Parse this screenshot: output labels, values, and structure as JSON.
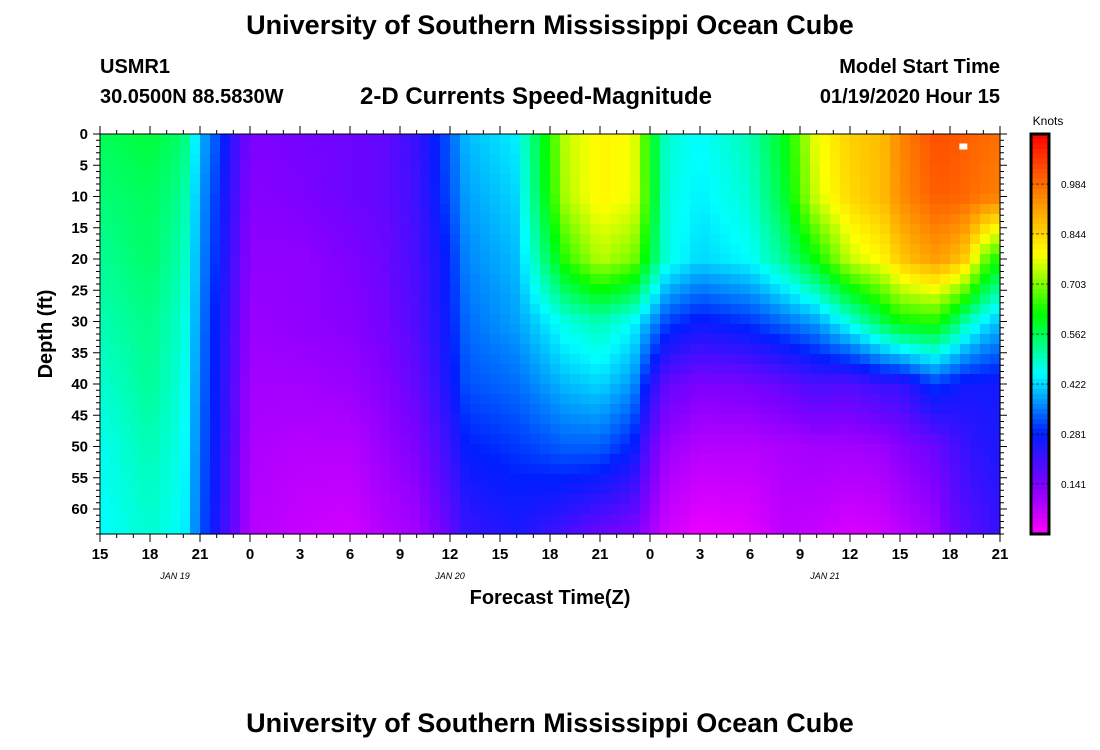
{
  "header": {
    "title": "University of Southern Mississippi Ocean Cube",
    "station": "USMR1",
    "coords": "30.0500N 88.5830W",
    "subtitle": "2-D Currents Speed-Magnitude",
    "model_label": "Model Start Time",
    "model_time": "01/19/2020 Hour 15"
  },
  "footer": {
    "title": "University of Southern Mississippi Ocean Cube"
  },
  "chart_data": {
    "type": "heatmap",
    "title": "2-D Currents Speed-Magnitude",
    "xlabel": "Forecast Time(Z)",
    "ylabel": "Depth (ft)",
    "x_unit": "forecast hours from 01/19 15Z",
    "xlim": [
      0,
      54
    ],
    "ylim": [
      64,
      0
    ],
    "x_ticks": [
      {
        "h": 0,
        "label": "15"
      },
      {
        "h": 3,
        "label": "18"
      },
      {
        "h": 6,
        "label": "21"
      },
      {
        "h": 9,
        "label": "0"
      },
      {
        "h": 12,
        "label": "3"
      },
      {
        "h": 15,
        "label": "6"
      },
      {
        "h": 18,
        "label": "9"
      },
      {
        "h": 21,
        "label": "12"
      },
      {
        "h": 24,
        "label": "15"
      },
      {
        "h": 27,
        "label": "18"
      },
      {
        "h": 30,
        "label": "21"
      },
      {
        "h": 33,
        "label": "0"
      },
      {
        "h": 36,
        "label": "3"
      },
      {
        "h": 39,
        "label": "6"
      },
      {
        "h": 42,
        "label": "9"
      },
      {
        "h": 45,
        "label": "12"
      },
      {
        "h": 48,
        "label": "15"
      },
      {
        "h": 51,
        "label": "18"
      },
      {
        "h": 54,
        "label": "21"
      }
    ],
    "date_labels": [
      {
        "h": 4.5,
        "label": "JAN 19"
      },
      {
        "h": 21,
        "label": "JAN 20"
      },
      {
        "h": 43.5,
        "label": "JAN 21"
      }
    ],
    "y_ticks": [
      0,
      5,
      10,
      15,
      20,
      25,
      30,
      35,
      40,
      45,
      50,
      55,
      60
    ],
    "colorbar": {
      "label": "Knots",
      "min": 0.0,
      "max": 1.125,
      "ticks": [
        0.141,
        0.281,
        0.422,
        0.562,
        0.703,
        0.844,
        0.984
      ]
    },
    "hours": [
      0,
      3,
      5,
      6,
      7,
      8,
      9,
      12,
      15,
      17,
      19,
      20,
      21,
      22,
      25,
      28,
      30,
      32,
      33,
      34,
      36,
      39,
      41,
      43,
      45,
      47,
      48,
      50,
      51,
      52,
      53,
      54
    ],
    "depths": [
      0,
      10,
      20,
      30,
      40,
      50,
      64
    ],
    "speed_grid": [
      [
        0.56,
        0.58,
        0.55,
        0.4,
        0.32,
        0.22,
        0.14,
        0.15,
        0.16,
        0.17,
        0.22,
        0.27,
        0.33,
        0.4,
        0.44,
        0.75,
        0.8,
        0.78,
        0.62,
        0.48,
        0.45,
        0.5,
        0.6,
        0.78,
        0.85,
        0.88,
        0.95,
        1.02,
        1.02,
        1.0,
        0.99,
        0.98
      ],
      [
        0.54,
        0.56,
        0.52,
        0.38,
        0.3,
        0.21,
        0.13,
        0.14,
        0.16,
        0.17,
        0.21,
        0.26,
        0.32,
        0.38,
        0.42,
        0.74,
        0.8,
        0.78,
        0.63,
        0.47,
        0.44,
        0.48,
        0.58,
        0.76,
        0.84,
        0.88,
        0.94,
        1.0,
        1.0,
        0.99,
        0.97,
        0.96
      ],
      [
        0.52,
        0.55,
        0.5,
        0.37,
        0.29,
        0.2,
        0.12,
        0.12,
        0.14,
        0.16,
        0.2,
        0.24,
        0.29,
        0.36,
        0.4,
        0.65,
        0.74,
        0.7,
        0.58,
        0.47,
        0.42,
        0.45,
        0.52,
        0.62,
        0.75,
        0.8,
        0.86,
        0.92,
        0.9,
        0.85,
        0.7,
        0.62
      ],
      [
        0.5,
        0.53,
        0.48,
        0.36,
        0.27,
        0.19,
        0.11,
        0.12,
        0.13,
        0.15,
        0.19,
        0.23,
        0.28,
        0.34,
        0.38,
        0.47,
        0.5,
        0.45,
        0.38,
        0.31,
        0.27,
        0.3,
        0.34,
        0.38,
        0.47,
        0.57,
        0.62,
        0.64,
        0.58,
        0.5,
        0.44,
        0.4
      ],
      [
        0.48,
        0.52,
        0.47,
        0.35,
        0.27,
        0.18,
        0.1,
        0.1,
        0.11,
        0.13,
        0.17,
        0.21,
        0.26,
        0.32,
        0.34,
        0.4,
        0.42,
        0.37,
        0.25,
        0.17,
        0.14,
        0.15,
        0.17,
        0.2,
        0.19,
        0.22,
        0.22,
        0.3,
        0.28,
        0.26,
        0.26,
        0.26
      ],
      [
        0.46,
        0.5,
        0.46,
        0.34,
        0.26,
        0.18,
        0.09,
        0.08,
        0.08,
        0.11,
        0.14,
        0.18,
        0.22,
        0.28,
        0.3,
        0.33,
        0.33,
        0.28,
        0.17,
        0.11,
        0.08,
        0.08,
        0.09,
        0.1,
        0.1,
        0.11,
        0.13,
        0.16,
        0.19,
        0.22,
        0.24,
        0.25
      ],
      [
        0.45,
        0.48,
        0.45,
        0.33,
        0.25,
        0.17,
        0.08,
        0.06,
        0.05,
        0.08,
        0.1,
        0.13,
        0.17,
        0.22,
        0.25,
        0.2,
        0.16,
        0.14,
        0.1,
        0.05,
        0.02,
        0.03,
        0.07,
        0.06,
        0.04,
        0.05,
        0.07,
        0.1,
        0.15,
        0.18,
        0.2,
        0.22
      ]
    ],
    "marker": {
      "h": 51.8,
      "depth": 2
    }
  }
}
